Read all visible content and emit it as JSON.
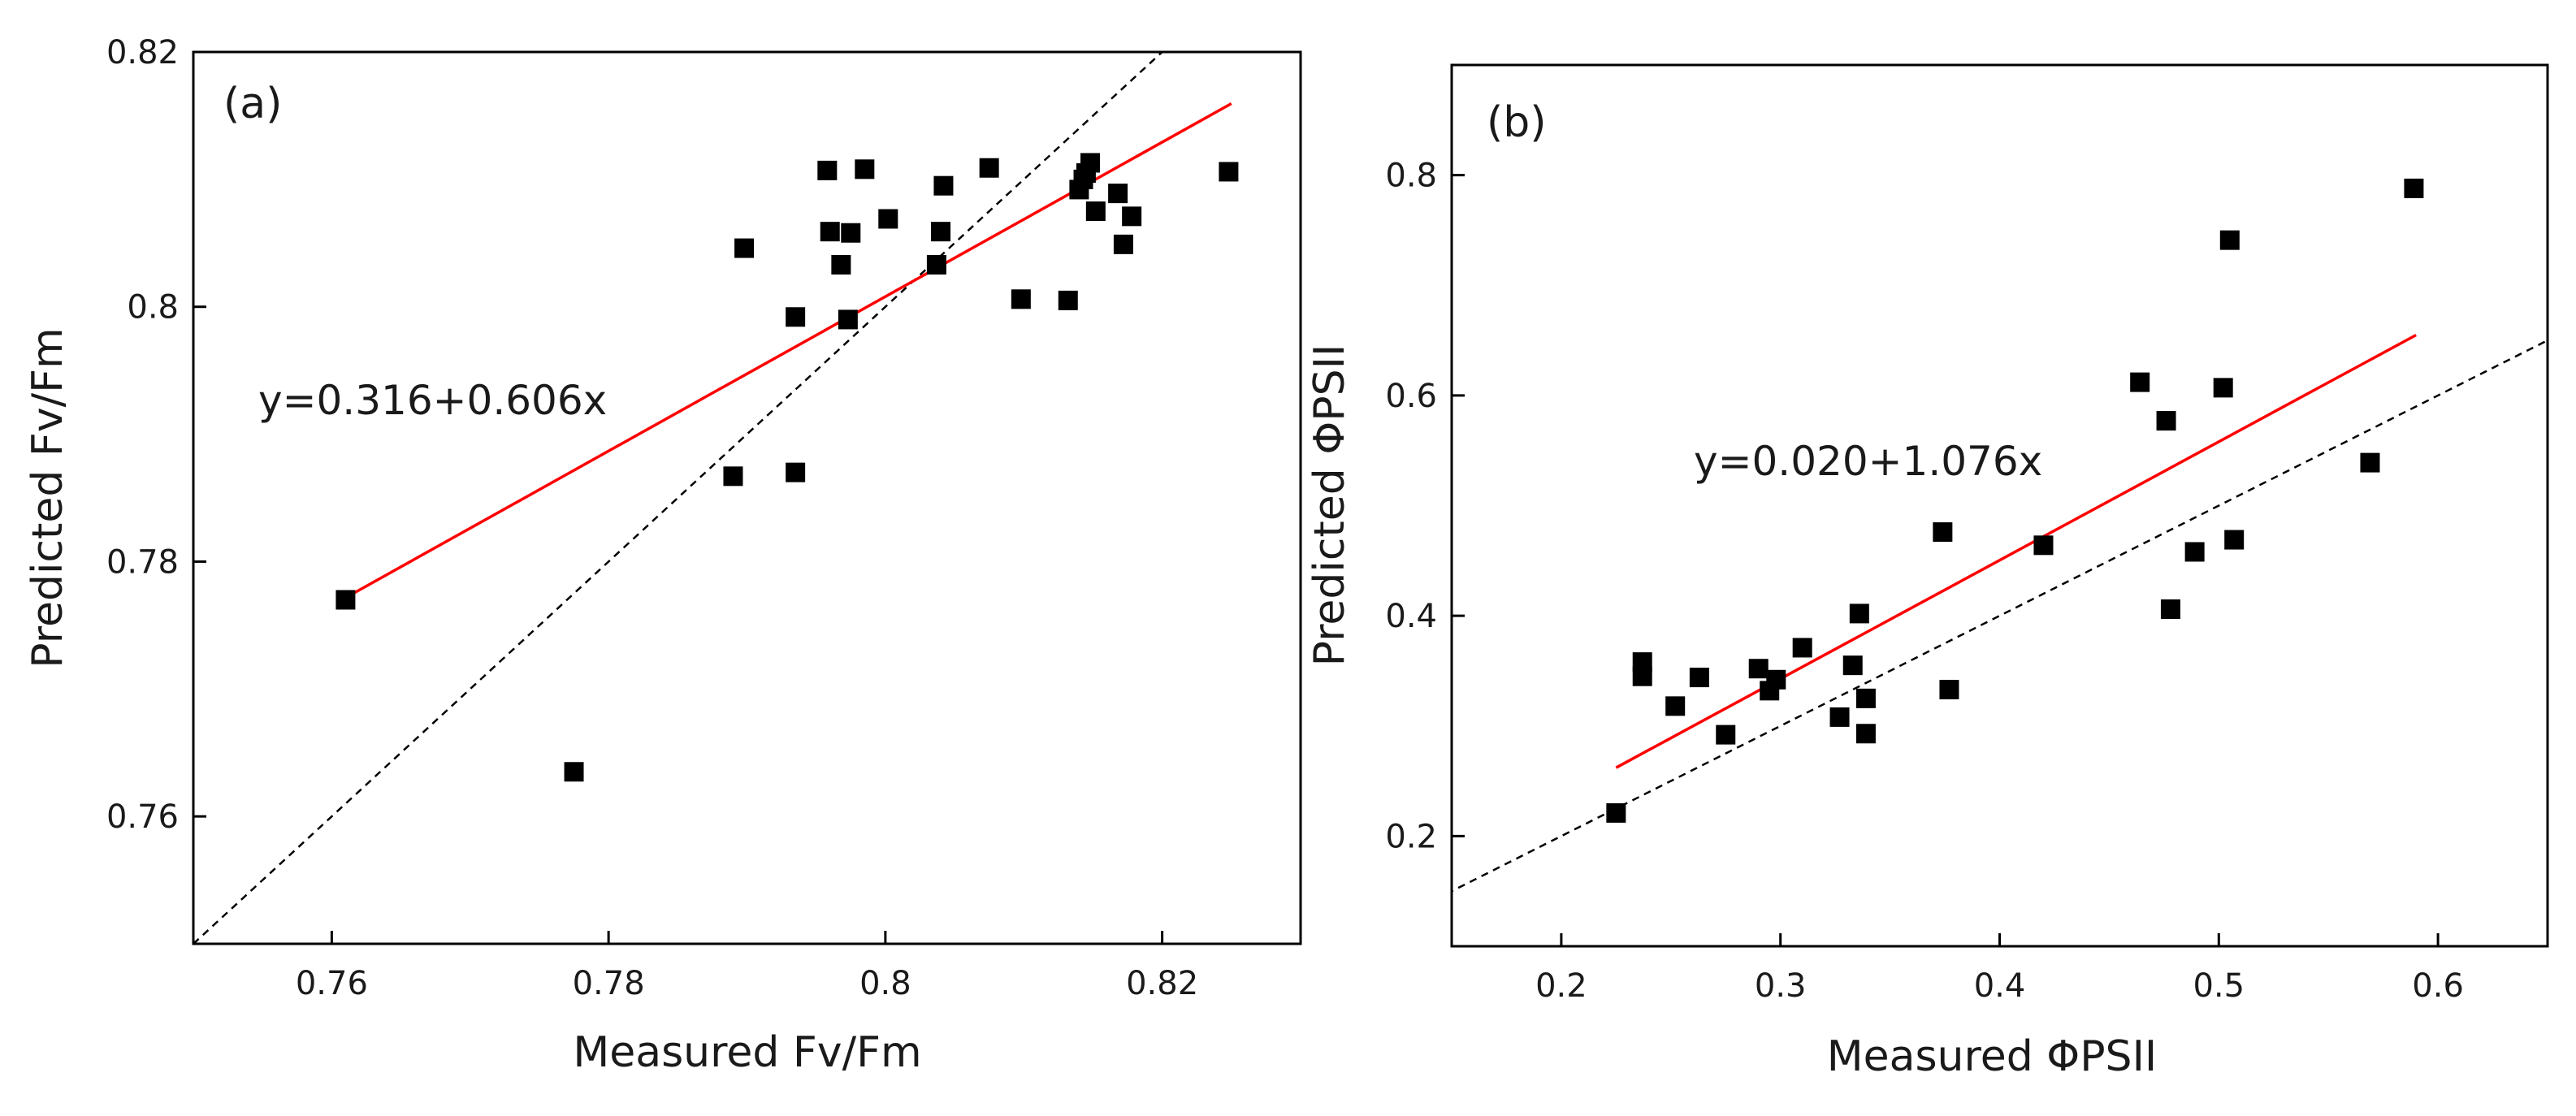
{
  "chart_data": [
    {
      "type": "scatter",
      "panel_label": "(a)",
      "xlabel": "Measured Fv/Fm",
      "ylabel": "Predicted Fv/Fm",
      "xlim": [
        0.75,
        0.83
      ],
      "ylim": [
        0.75,
        0.82
      ],
      "xticks": [
        0.76,
        0.78,
        0.8,
        0.82
      ],
      "xtick_labels": [
        "0.76",
        "0.78",
        "0.8",
        "0.82"
      ],
      "yticks": [
        0.76,
        0.78,
        0.8,
        0.82
      ],
      "ytick_labels": [
        "0.76",
        "0.78",
        "0.8",
        "0.82"
      ],
      "equation": "y=0.316+0.606x",
      "fit_line": {
        "intercept": 0.316,
        "slope": 0.606,
        "x_range": [
          0.761,
          0.825
        ],
        "color": "#ff0000"
      },
      "identity_line": {
        "color": "#000000",
        "style": "dashed"
      },
      "marker_color": "#000000",
      "points": [
        [
          0.761,
          0.777
        ],
        [
          0.7775,
          0.7635
        ],
        [
          0.789,
          0.7867
        ],
        [
          0.7898,
          0.8046
        ],
        [
          0.7935,
          0.7992
        ],
        [
          0.7935,
          0.787
        ],
        [
          0.7958,
          0.8107
        ],
        [
          0.796,
          0.8059
        ],
        [
          0.7968,
          0.8033
        ],
        [
          0.7973,
          0.799
        ],
        [
          0.7975,
          0.8058
        ],
        [
          0.7985,
          0.8108
        ],
        [
          0.8002,
          0.8069
        ],
        [
          0.8037,
          0.8033
        ],
        [
          0.804,
          0.8059
        ],
        [
          0.8042,
          0.8095
        ],
        [
          0.8075,
          0.8109
        ],
        [
          0.8098,
          0.8006
        ],
        [
          0.8132,
          0.8005
        ],
        [
          0.814,
          0.8092
        ],
        [
          0.8143,
          0.81
        ],
        [
          0.8145,
          0.8105
        ],
        [
          0.8148,
          0.8113
        ],
        [
          0.8152,
          0.8075
        ],
        [
          0.8168,
          0.8089
        ],
        [
          0.8172,
          0.8049
        ],
        [
          0.8178,
          0.8071
        ],
        [
          0.8248,
          0.8106
        ]
      ]
    },
    {
      "type": "scatter",
      "panel_label": "(b)",
      "xlabel": "Measured ΦPSII",
      "ylabel": "Predicted ΦPSII",
      "xlim": [
        0.15,
        0.65
      ],
      "ylim": [
        0.1,
        0.9
      ],
      "xticks": [
        0.2,
        0.3,
        0.4,
        0.5,
        0.6
      ],
      "xtick_labels": [
        "0.2",
        "0.3",
        "0.4",
        "0.5",
        "0.6"
      ],
      "yticks": [
        0.2,
        0.4,
        0.6,
        0.8
      ],
      "ytick_labels": [
        "0.2",
        "0.4",
        "0.6",
        "0.8"
      ],
      "equation": "y=0.020+1.076x",
      "fit_line": {
        "intercept": 0.02,
        "slope": 1.076,
        "x_range": [
          0.225,
          0.59
        ],
        "color": "#ff0000"
      },
      "identity_line": {
        "color": "#000000",
        "style": "dashed"
      },
      "marker_color": "#000000",
      "points": [
        [
          0.225,
          0.221
        ],
        [
          0.237,
          0.358
        ],
        [
          0.237,
          0.345
        ],
        [
          0.252,
          0.318
        ],
        [
          0.263,
          0.344
        ],
        [
          0.275,
          0.292
        ],
        [
          0.29,
          0.352
        ],
        [
          0.295,
          0.332
        ],
        [
          0.298,
          0.342
        ],
        [
          0.31,
          0.371
        ],
        [
          0.327,
          0.308
        ],
        [
          0.333,
          0.355
        ],
        [
          0.336,
          0.402
        ],
        [
          0.339,
          0.325
        ],
        [
          0.339,
          0.293
        ],
        [
          0.374,
          0.476
        ],
        [
          0.377,
          0.333
        ],
        [
          0.42,
          0.464
        ],
        [
          0.464,
          0.612
        ],
        [
          0.476,
          0.577
        ],
        [
          0.478,
          0.406
        ],
        [
          0.489,
          0.458
        ],
        [
          0.502,
          0.607
        ],
        [
          0.505,
          0.741
        ],
        [
          0.507,
          0.469
        ],
        [
          0.569,
          0.539
        ],
        [
          0.589,
          0.788
        ]
      ]
    }
  ]
}
